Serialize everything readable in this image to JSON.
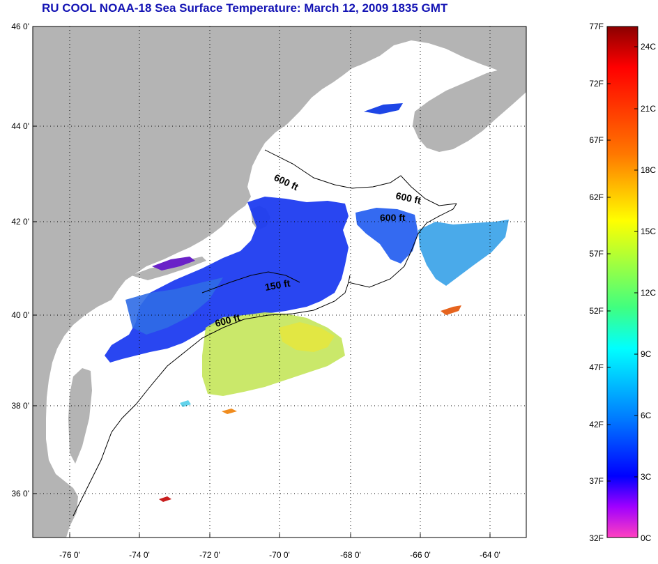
{
  "title": "RU COOL  NOAA-18  Sea Surface Temperature:  March 12, 2009 1835 GMT",
  "map": {
    "lat_labels": [
      "46 0'",
      "44 0'",
      "42 0'",
      "40 0'",
      "38 0'",
      "36 0'"
    ],
    "lon_labels": [
      "-76 0'",
      "-74 0'",
      "-72 0'",
      "-70 0'",
      "-68 0'",
      "-66 0'",
      "-64 0'"
    ],
    "contour_labels": [
      "600 ft",
      "600 ft",
      "600 ft",
      "150 ft",
      "600 ft"
    ],
    "colors": {
      "land": "#b4b4b4",
      "no_data": "#ffffff",
      "grid": "#000000"
    }
  },
  "colorbar": {
    "fahrenheit_labels": [
      "77F",
      "72F",
      "67F",
      "62F",
      "57F",
      "52F",
      "47F",
      "42F",
      "37F",
      "32F"
    ],
    "celsius_labels": [
      "24C",
      "21C",
      "18C",
      "15C",
      "12C",
      "9C",
      "6C",
      "3C",
      "0C"
    ]
  }
}
